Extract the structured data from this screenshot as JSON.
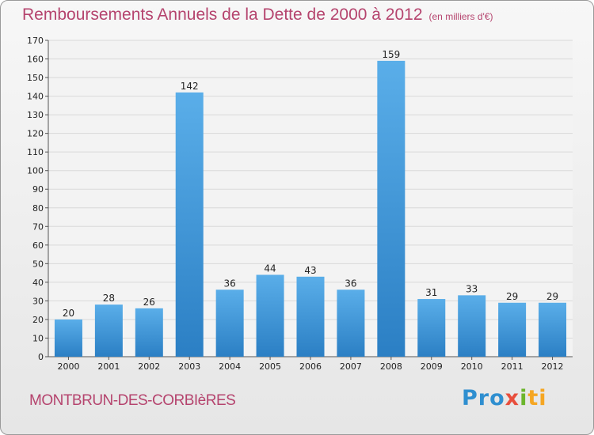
{
  "header": {
    "title": "Remboursements Annuels de la Dette de 2000 à 2012",
    "subtitle": "(en milliers d'€)"
  },
  "footer": {
    "place": "MONTBRUN-DES-CORBIèRES",
    "logo": {
      "p": "Pro",
      "x": "x",
      "i": "i",
      "ti": "ti"
    }
  },
  "colors": {
    "bar": "#3a95d8",
    "text_accent": "#b5446e",
    "grid": "#d9d9d9"
  },
  "chart_data": {
    "type": "bar",
    "title": "Remboursements Annuels de la Dette de 2000 à 2012",
    "subtitle": "(en milliers d'€)",
    "xlabel": "",
    "ylabel": "",
    "categories": [
      "2000",
      "2001",
      "2002",
      "2003",
      "2004",
      "2005",
      "2006",
      "2007",
      "2008",
      "2009",
      "2010",
      "2011",
      "2012"
    ],
    "values": [
      20,
      28,
      26,
      142,
      36,
      44,
      43,
      36,
      159,
      31,
      33,
      29,
      29
    ],
    "ylim": [
      0,
      170
    ],
    "yticks": [
      0,
      10,
      20,
      30,
      40,
      50,
      60,
      70,
      80,
      90,
      100,
      110,
      120,
      130,
      140,
      150,
      160,
      170
    ],
    "grid": true,
    "data_labels": true
  }
}
